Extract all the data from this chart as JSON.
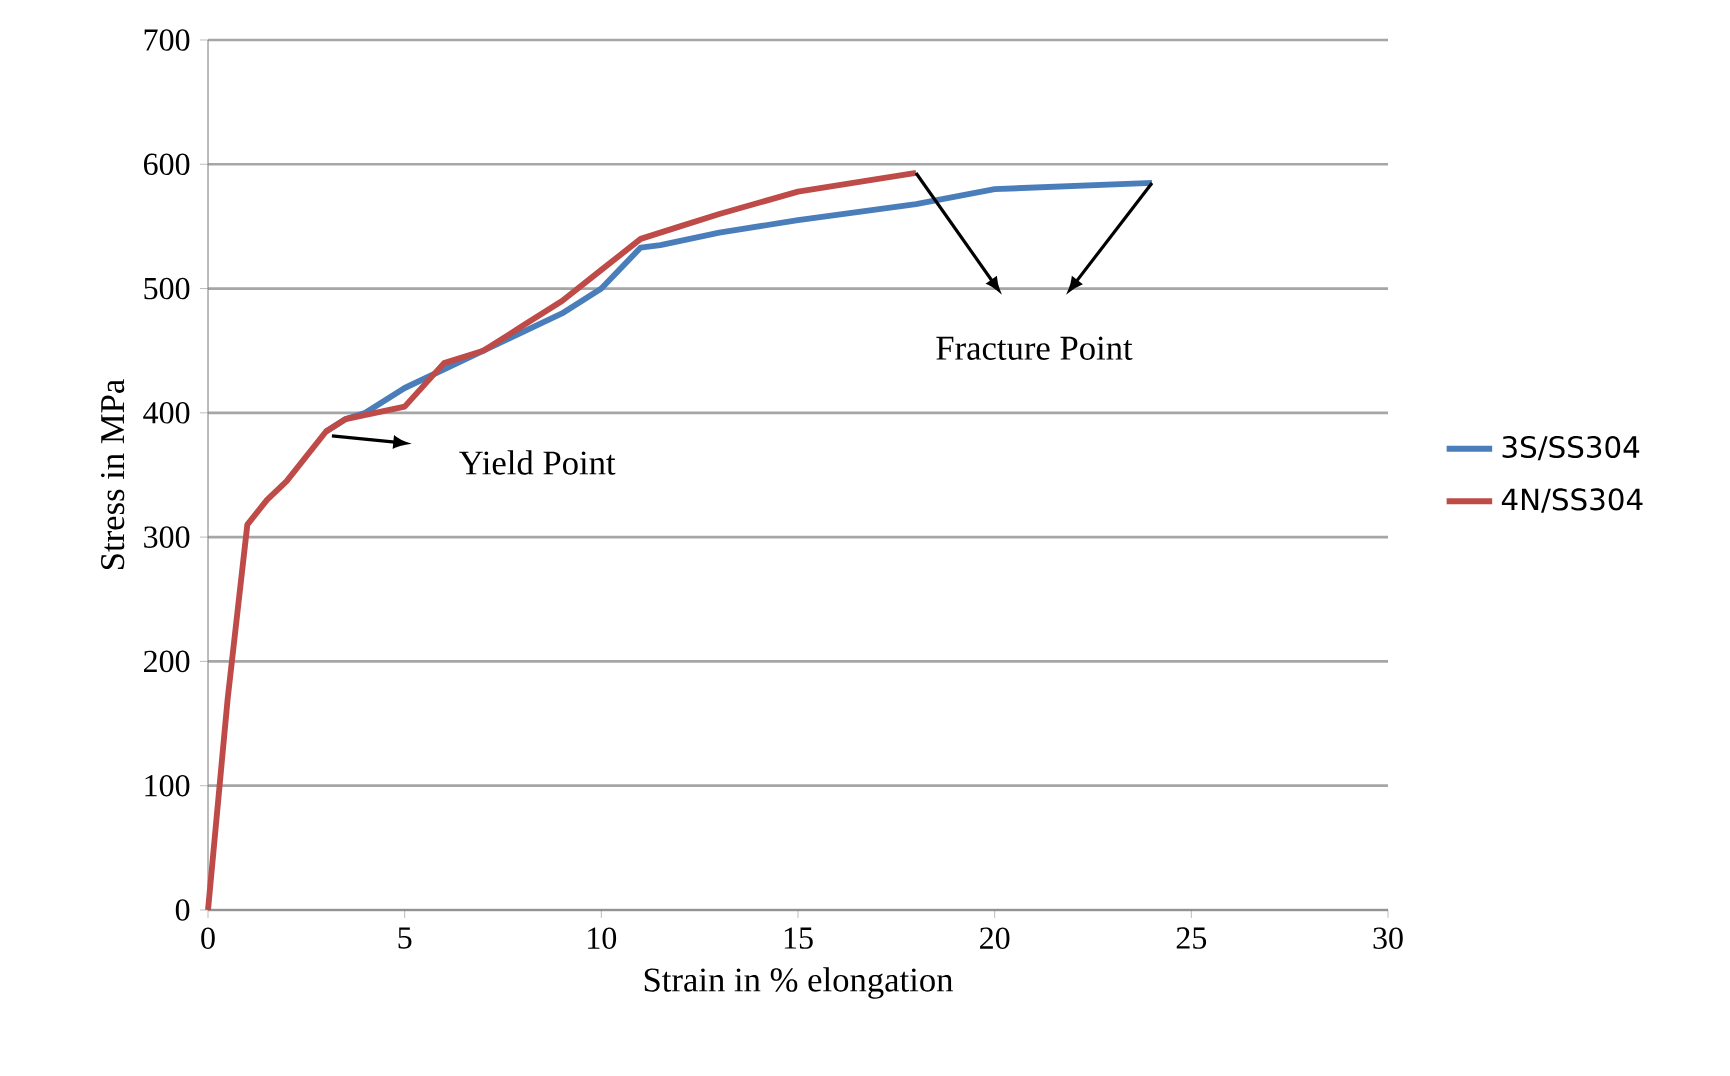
{
  "chart_data": {
    "type": "line",
    "xlabel": "Strain in % elongation",
    "ylabel": "Stress in MPa",
    "xlim": [
      0,
      30
    ],
    "xticks": [
      0,
      5,
      10,
      15,
      20,
      25,
      30
    ],
    "ylim": [
      0,
      700
    ],
    "yticks": [
      0,
      100,
      200,
      300,
      400,
      500,
      600,
      700
    ],
    "grid": "y",
    "legend": "right",
    "marker": "none",
    "line_style": "solid",
    "series": [
      {
        "name": "3S/SS304",
        "color": "#4a7ebb",
        "x": [
          3,
          3.5,
          4,
          5,
          6,
          7,
          8,
          9,
          10,
          11,
          11.5,
          13,
          15,
          18,
          20,
          24
        ],
        "values": [
          385,
          395,
          400,
          420,
          435,
          450,
          465,
          480,
          500,
          533,
          535,
          545,
          555,
          568,
          580,
          585
        ]
      },
      {
        "name": "4N/SS304",
        "color": "#be4b48",
        "x": [
          0,
          0.5,
          1,
          1.5,
          2,
          3,
          3.5,
          5,
          6,
          7,
          8,
          9,
          10,
          11,
          12,
          13,
          15,
          18
        ],
        "values": [
          0,
          170,
          310,
          330,
          345,
          385,
          395,
          405,
          440,
          450,
          470,
          490,
          515,
          540,
          550,
          560,
          578,
          593
        ]
      }
    ],
    "annotations": [
      "Yield Point",
      "Fracture Point"
    ]
  }
}
